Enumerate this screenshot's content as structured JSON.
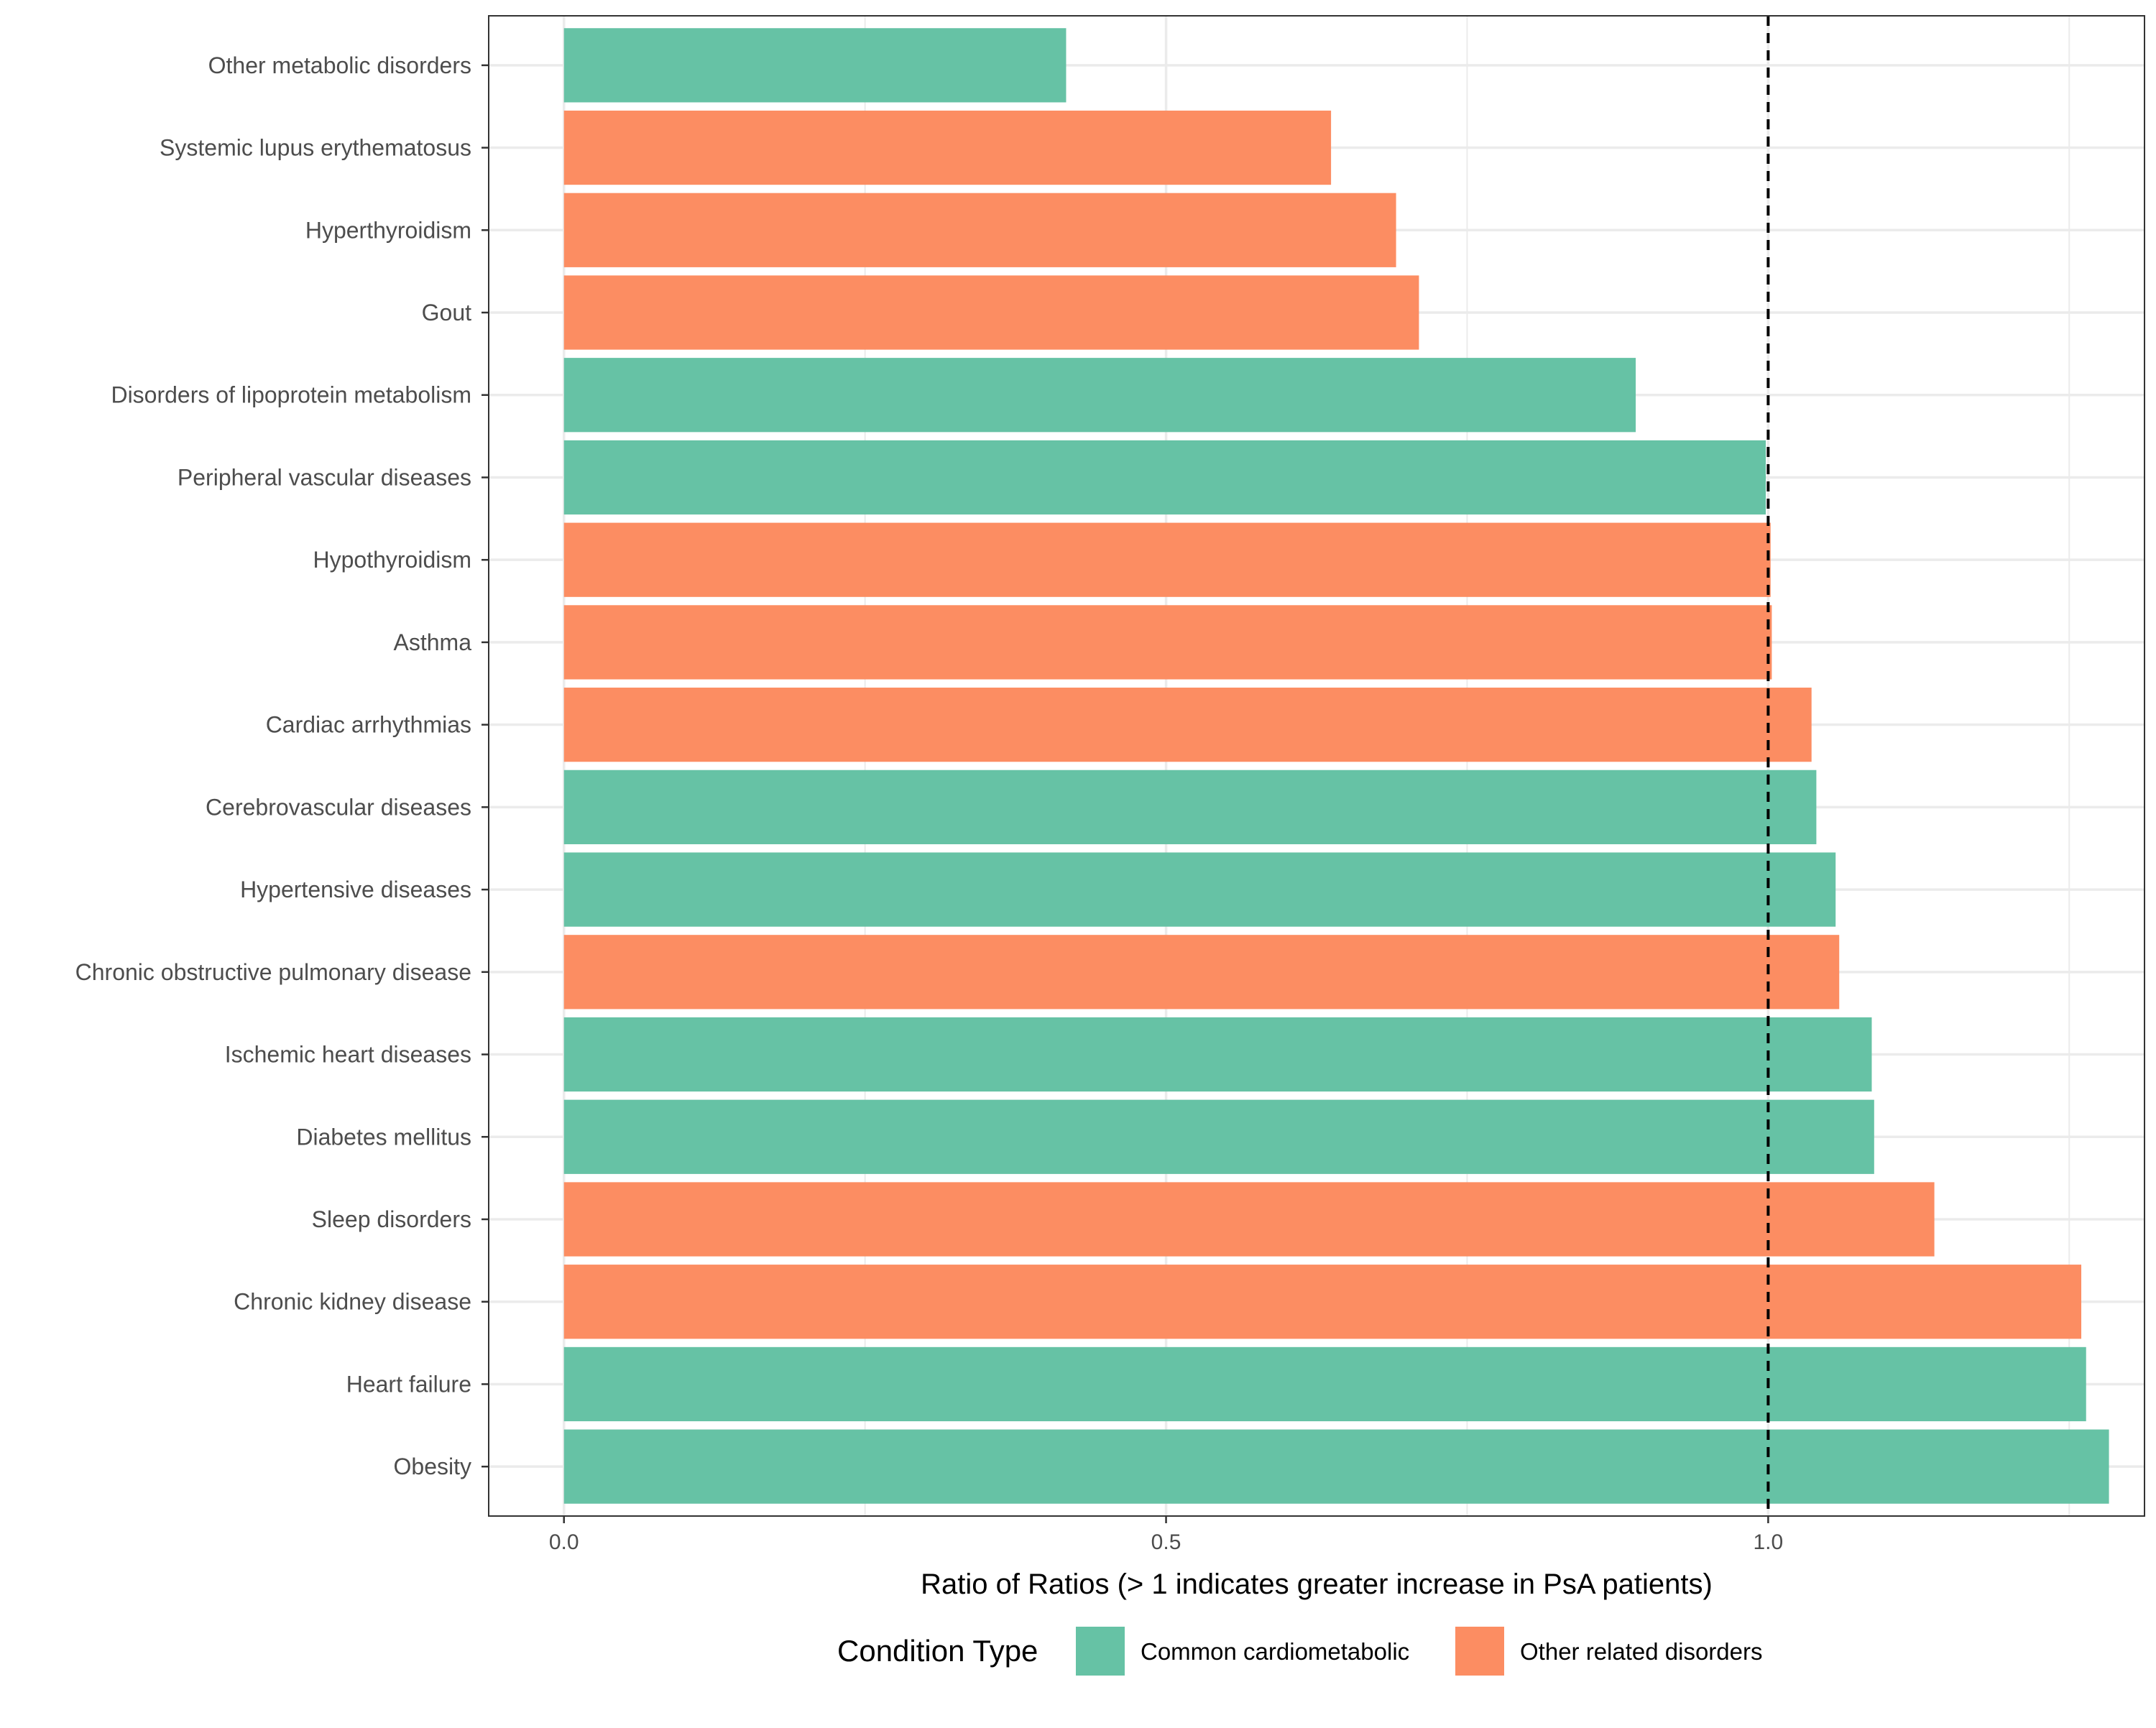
{
  "chart_data": {
    "type": "bar",
    "orientation": "horizontal",
    "categories": [
      "Other metabolic disorders",
      "Systemic lupus erythematosus",
      "Hyperthyroidism",
      "Gout",
      "Disorders of lipoprotein metabolism",
      "Peripheral vascular diseases",
      "Hypothyroidism",
      "Asthma",
      "Cardiac arrhythmias",
      "Cerebrovascular diseases",
      "Hypertensive diseases",
      "Chronic obstructive pulmonary disease",
      "Ischemic heart diseases",
      "Diabetes mellitus",
      "Sleep disorders",
      "Chronic kidney disease",
      "Heart failure",
      "Obesity"
    ],
    "values": [
      0.417,
      0.637,
      0.691,
      0.71,
      0.89,
      0.998,
      1.002,
      1.003,
      1.036,
      1.04,
      1.056,
      1.059,
      1.086,
      1.088,
      1.138,
      1.26,
      1.264,
      1.283
    ],
    "groups": [
      "Common cardiometabolic",
      "Other related disorders",
      "Other related disorders",
      "Other related disorders",
      "Common cardiometabolic",
      "Common cardiometabolic",
      "Other related disorders",
      "Other related disorders",
      "Other related disorders",
      "Common cardiometabolic",
      "Common cardiometabolic",
      "Other related disorders",
      "Common cardiometabolic",
      "Common cardiometabolic",
      "Other related disorders",
      "Other related disorders",
      "Common cardiometabolic",
      "Common cardiometabolic"
    ],
    "xlabel": "Ratio of Ratios (> 1 indicates greater increase in PsA patients)",
    "ylabel": "",
    "xlim": [
      -0.0625,
      1.3125
    ],
    "x_ticks": [
      {
        "value": 0.0,
        "label": "0.0"
      },
      {
        "value": 0.5,
        "label": "0.5"
      },
      {
        "value": 1.0,
        "label": "1.0"
      }
    ],
    "x_minor_gridlines": [
      0.25,
      0.75,
      1.25
    ],
    "reference_line": {
      "value": 1.0,
      "style": "dashed"
    },
    "grid": true,
    "legend": {
      "title": "Condition Type",
      "position": "bottom",
      "items": [
        {
          "label": "Common cardiometabolic",
          "color": "#66c2a5"
        },
        {
          "label": "Other related disorders",
          "color": "#fc8d62"
        }
      ]
    },
    "colors": {
      "Common cardiometabolic": "#66c2a5",
      "Other related disorders": "#fc8d62"
    }
  }
}
